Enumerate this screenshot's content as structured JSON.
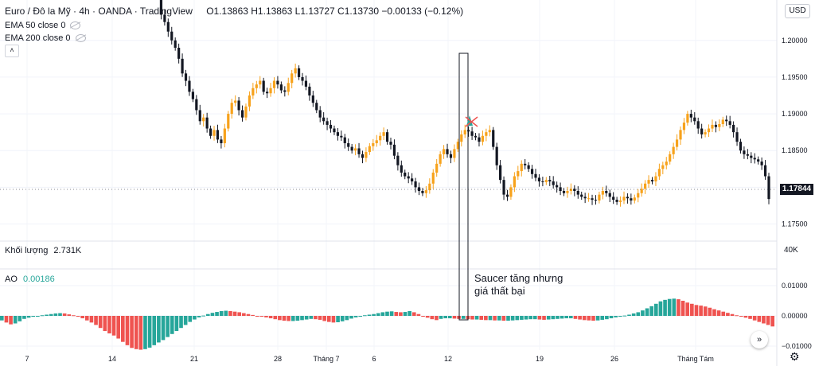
{
  "header": {
    "symbol": "Euro / Đô la Mỹ · 4h · OANDA · TradingView",
    "ohlc": "O1.13863 H1.13863 L1.13727 C1.13730 −0.00133 (−0.12%)",
    "ema50": "EMA 50 close 0",
    "ema200": "EMA 200 close 0",
    "collapse_icon": "chevron-up-icon"
  },
  "currency_button": "USD",
  "last_price": "1.17844",
  "volume": {
    "label": "Khối lượng",
    "value": "2.731K",
    "axis_tick": "40K"
  },
  "ao": {
    "label": "AO",
    "value": "0.00186"
  },
  "annotation": {
    "line1": "Saucer tăng nhưng",
    "line2": "giá thất bại"
  },
  "price_axis": [
    "1.20000",
    "1.19500",
    "1.19000",
    "1.18500",
    "1.18000",
    "1.17500"
  ],
  "ao_axis": [
    "0.01000",
    "0.00000",
    "−0.01000"
  ],
  "time_axis": [
    "7",
    "14",
    "21",
    "28",
    "Tháng 7",
    "6",
    "12",
    "19",
    "26",
    "Tháng Tám"
  ],
  "colors": {
    "up": "#f7a21b",
    "down": "#131722",
    "ao_up": "#26a69a",
    "ao_down": "#ef5350",
    "signal": "#26a69a",
    "signal_x": "#ef5350"
  },
  "chart_data": {
    "type": "candlestick",
    "price_ylim": [
      1.173,
      1.2055
    ],
    "ao_ylim": [
      -0.012,
      0.012
    ],
    "close": [
      1.2062,
      1.2035,
      1.2025,
      1.2012,
      1.2,
      1.199,
      1.1975,
      1.1955,
      1.1945,
      1.193,
      1.192,
      1.1905,
      1.189,
      1.1895,
      1.188,
      1.187,
      1.1878,
      1.1865,
      1.186,
      1.188,
      1.19,
      1.1915,
      1.1918,
      1.1905,
      1.1895,
      1.191,
      1.1925,
      1.1935,
      1.194,
      1.1945,
      1.193,
      1.1928,
      1.1935,
      1.1945,
      1.194,
      1.1932,
      1.193,
      1.1942,
      1.1955,
      1.1962,
      1.195,
      1.1945,
      1.1937,
      1.1925,
      1.1915,
      1.1905,
      1.1895,
      1.189,
      1.1885,
      1.188,
      1.1875,
      1.187,
      1.1868,
      1.186,
      1.1855,
      1.185,
      1.1853,
      1.1845,
      1.184,
      1.1848,
      1.1856,
      1.186,
      1.1864,
      1.187,
      1.1875,
      1.1862,
      1.1858,
      1.1843,
      1.183,
      1.182,
      1.1815,
      1.1812,
      1.1808,
      1.18,
      1.1795,
      1.1792,
      1.1796,
      1.1805,
      1.182,
      1.1832,
      1.1845,
      1.1852,
      1.1845,
      1.184,
      1.1852,
      1.1862,
      1.1872,
      1.1878,
      1.1876,
      1.187,
      1.1868,
      1.1862,
      1.187,
      1.1875,
      1.1878,
      1.1855,
      1.183,
      1.181,
      1.179,
      1.1787,
      1.18,
      1.1815,
      1.1822,
      1.1832,
      1.183,
      1.1825,
      1.1818,
      1.1813,
      1.1808,
      1.1807,
      1.181,
      1.1808,
      1.1803,
      1.18,
      1.1795,
      1.1792,
      1.1795,
      1.1798,
      1.1795,
      1.179,
      1.1787,
      1.1785,
      1.1785,
      1.1783,
      1.1782,
      1.179,
      1.1795,
      1.1792,
      1.1787,
      1.1783,
      1.178,
      1.1782,
      1.1787,
      1.1785,
      1.1782,
      1.1786,
      1.1792,
      1.1798,
      1.1805,
      1.181,
      1.1808,
      1.1815,
      1.1825,
      1.183,
      1.1835,
      1.1845,
      1.1855,
      1.1865,
      1.1878,
      1.1888,
      1.19,
      1.1895,
      1.189,
      1.188,
      1.1872,
      1.1875,
      1.188,
      1.1885,
      1.1882,
      1.1886,
      1.1892,
      1.189,
      1.1885,
      1.1875,
      1.1862,
      1.185,
      1.1845,
      1.1843,
      1.184,
      1.1838,
      1.1835,
      1.183,
      1.1815,
      1.1784
    ],
    "ao": [
      -0.0015,
      -0.0022,
      -0.0028,
      -0.0025,
      -0.0018,
      -0.001,
      -0.0006,
      -0.0003,
      -0.0001,
      0.0002,
      0.0004,
      0.0006,
      0.0008,
      0.0009,
      0.0008,
      0.0005,
      0.0002,
      -0.0002,
      -0.0008,
      -0.0015,
      -0.0022,
      -0.003,
      -0.004,
      -0.005,
      -0.0058,
      -0.0065,
      -0.0075,
      -0.0086,
      -0.0097,
      -0.0106,
      -0.011,
      -0.0112,
      -0.011,
      -0.0105,
      -0.0097,
      -0.0088,
      -0.008,
      -0.007,
      -0.006,
      -0.005,
      -0.004,
      -0.003,
      -0.002,
      -0.0012,
      -0.0005,
      0.0001,
      0.0006,
      0.001,
      0.0013,
      0.0016,
      0.0017,
      0.0016,
      0.0014,
      0.0012,
      0.0009,
      0.0006,
      0.0003,
      0.0,
      -0.0002,
      -0.0005,
      -0.0008,
      -0.0011,
      -0.0014,
      -0.0016,
      -0.0017,
      -0.0017,
      -0.0016,
      -0.0014,
      -0.0012,
      -0.001,
      -0.0011,
      -0.0013,
      -0.0017,
      -0.002,
      -0.0022,
      -0.0021,
      -0.0018,
      -0.0014,
      -0.0009,
      -0.0005,
      -0.0001,
      0.0002,
      0.0004,
      0.0006,
      0.0009,
      0.0012,
      0.0014,
      0.0015,
      0.0013,
      0.0012,
      0.0013,
      0.0016,
      0.0012,
      0.0006,
      0.0,
      -0.0006,
      -0.0011,
      -0.0014,
      -0.001,
      -0.0008,
      -0.0008,
      -0.0009,
      -0.001,
      -0.001,
      -0.0011,
      -0.0012,
      -0.0012,
      -0.0013,
      -0.0014,
      -0.0014,
      -0.0015,
      -0.0015,
      -0.0016,
      -0.0016,
      -0.0015,
      -0.0014,
      -0.0013,
      -0.0012,
      -0.0011,
      -0.0011,
      -0.0012,
      -0.0013,
      -0.0012,
      -0.0011,
      -0.001,
      -0.0009,
      -0.0008,
      -0.0008,
      -0.001,
      -0.0012,
      -0.0014,
      -0.0015,
      -0.0016,
      -0.0015,
      -0.0013,
      -0.0011,
      -0.0008,
      -0.0005,
      -0.0002,
      0.0001,
      0.0004,
      0.0008,
      0.0012,
      0.0018,
      0.0025,
      0.0032,
      0.004,
      0.0048,
      0.0053,
      0.0056,
      0.0057,
      0.0055,
      0.005,
      0.0044,
      0.004,
      0.0036,
      0.0034,
      0.0031,
      0.0027,
      0.0022,
      0.0018,
      0.0014,
      0.001,
      0.0006,
      0.0002,
      -0.0002,
      -0.0006,
      -0.001,
      -0.0015,
      -0.002,
      -0.0025,
      -0.003,
      -0.0035
    ]
  }
}
